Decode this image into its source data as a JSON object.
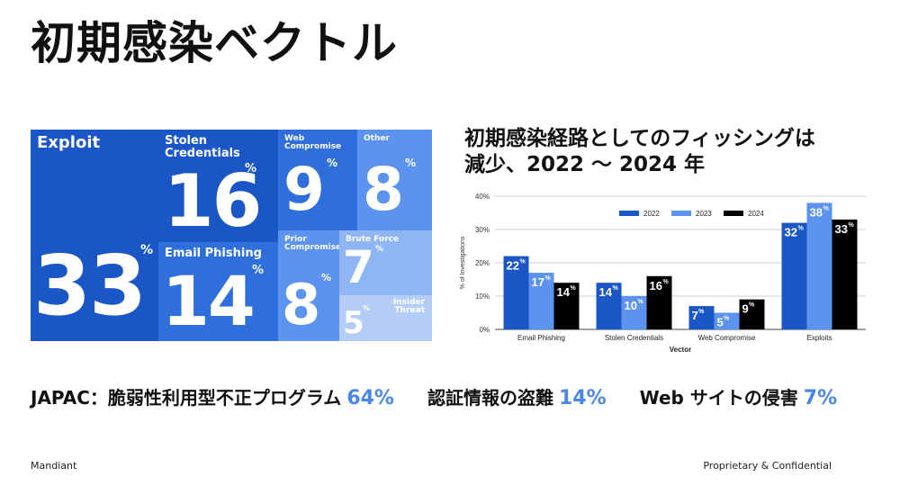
{
  "title": "初期感染ベクトル",
  "treemap": {
    "exploit": {
      "label": "Exploit",
      "value": "33",
      "pct": "%"
    },
    "stolen": {
      "label": "Stolen\nCredentials",
      "value": "16",
      "pct": "%"
    },
    "web": {
      "label": "Web\nCompromise",
      "value": "9",
      "pct": "%"
    },
    "other": {
      "label": "Other",
      "value": "8",
      "pct": "%"
    },
    "email": {
      "label": "Email Phishing",
      "value": "14",
      "pct": "%"
    },
    "prior": {
      "label": "Prior\nCompromise",
      "value": "8",
      "pct": "%"
    },
    "brute": {
      "label": "Brute Force",
      "value": "7",
      "pct": "%"
    },
    "insider": {
      "label": "Insider\nThreat",
      "value": "5",
      "pct": "%"
    },
    "colors": {
      "dark": "#1b56c7",
      "mid": "#2f6fdb",
      "light": "#5c93ee",
      "lighter": "#8fb5f3",
      "lightest": "#b3cdf7"
    }
  },
  "chart_title": "初期感染経路としてのフィッシングは\n減少、2022 〜 2024 年",
  "chart_data": {
    "type": "bar",
    "categories": [
      "Email Phishing",
      "Stolen Credentials",
      "Web Compromise",
      "Exploits"
    ],
    "series": [
      {
        "name": "2022",
        "values": [
          22,
          14,
          7,
          32
        ],
        "color": "#1b56c7"
      },
      {
        "name": "2023",
        "values": [
          17,
          10,
          5,
          38
        ],
        "color": "#5c93ee"
      },
      {
        "name": "2024",
        "values": [
          14,
          16,
          9,
          33
        ],
        "color": "#000000"
      }
    ],
    "xlabel": "Vector",
    "ylabel": "% of Investigations",
    "ylim": [
      0,
      40
    ],
    "yticks": [
      "0%",
      "10%",
      "20%",
      "30%",
      "40%"
    ],
    "legend": "top-right",
    "grid": true
  },
  "bottom": {
    "japac_label": "JAPAC：脆弱性利用型不正プログラム",
    "japac_value": "64%",
    "theft_label": "認証情報の盗難",
    "theft_value": "14%",
    "web_label": "Web サイトの侵害",
    "web_value": "7%"
  },
  "footer": {
    "left": "Mandiant",
    "right": "Proprietary & Confidential"
  }
}
